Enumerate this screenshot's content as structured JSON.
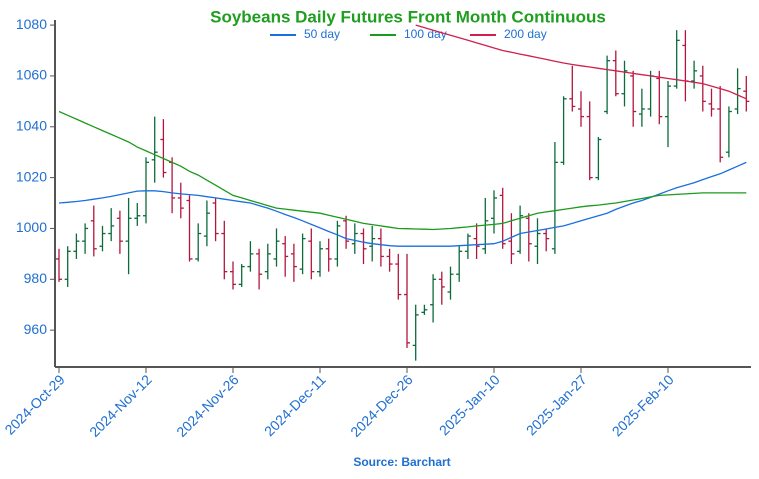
{
  "chart_data": {
    "type": "ohlc",
    "title": "Soybeans Daily Futures Front Month Continuous",
    "source": "Source: Barchart",
    "up_color": "#0b6b3a",
    "down_color": "#b3163c",
    "ylim": [
      945.5,
      1082
    ],
    "yticks": [
      960,
      980,
      1000,
      1020,
      1040,
      1060,
      1080
    ],
    "categories": [
      "2024-Oct-29",
      null,
      null,
      null,
      null,
      null,
      null,
      null,
      null,
      null,
      "2024-Nov-12",
      null,
      null,
      null,
      null,
      null,
      null,
      null,
      null,
      null,
      "2024-Nov-26",
      null,
      null,
      null,
      null,
      null,
      null,
      null,
      null,
      null,
      "2024-Dec-11",
      null,
      null,
      null,
      null,
      null,
      null,
      null,
      null,
      null,
      "2024-Dec-26",
      null,
      null,
      null,
      null,
      null,
      null,
      null,
      null,
      null,
      "2025-Jan-10",
      null,
      null,
      null,
      null,
      null,
      null,
      null,
      null,
      null,
      "2025-Jan-27",
      null,
      null,
      null,
      null,
      null,
      null,
      null,
      null,
      null,
      "2025-Feb-10",
      null,
      null,
      null,
      null,
      null,
      null,
      null,
      null,
      null
    ],
    "ohlc": [
      [
        988,
        992,
        979,
        980
      ],
      [
        980,
        993,
        977,
        991
      ],
      [
        991,
        998,
        988,
        995
      ],
      [
        995,
        1002,
        990,
        1000
      ],
      [
        1003,
        1009,
        989,
        992
      ],
      [
        993,
        1001,
        991,
        998
      ],
      [
        998,
        1008,
        995,
        1001
      ],
      [
        1004,
        1007,
        990,
        995
      ],
      [
        995,
        1012,
        982,
        1004
      ],
      [
        1004,
        1010,
        1001,
        1005
      ],
      [
        1005,
        1028,
        1002,
        1026
      ],
      [
        1027,
        1044,
        1018,
        1030
      ],
      [
        1035,
        1043,
        1020,
        1022
      ],
      [
        1026,
        1028,
        1006,
        1012
      ],
      [
        1012,
        1018,
        1004,
        1008
      ],
      [
        1011,
        1013,
        987,
        988
      ],
      [
        988,
        1002,
        987,
        998
      ],
      [
        997,
        1011,
        993,
        1006
      ],
      [
        1010,
        1012,
        995,
        998
      ],
      [
        998,
        1003,
        980,
        983
      ],
      [
        983,
        987,
        976,
        978
      ],
      [
        978,
        986,
        977,
        985
      ],
      [
        985,
        995,
        983,
        990
      ],
      [
        990,
        992,
        976,
        982
      ],
      [
        983,
        994,
        980,
        990
      ],
      [
        988,
        1000,
        985,
        995
      ],
      [
        994,
        997,
        981,
        989
      ],
      [
        990,
        994,
        979,
        985
      ],
      [
        984,
        998,
        982,
        996
      ],
      [
        995,
        1000,
        980,
        983
      ],
      [
        983,
        995,
        981,
        992
      ],
      [
        992,
        996,
        983,
        988
      ],
      [
        988,
        1003,
        985,
        1001
      ],
      [
        1003,
        1005,
        992,
        995
      ],
      [
        994,
        1002,
        990,
        998
      ],
      [
        998,
        1000,
        986,
        992
      ],
      [
        993,
        1001,
        987,
        996
      ],
      [
        996,
        1000,
        985,
        989
      ],
      [
        989,
        992,
        983,
        986
      ],
      [
        986,
        990,
        972,
        974
      ],
      [
        974,
        990,
        953,
        955
      ],
      [
        954,
        970,
        948,
        966
      ],
      [
        967,
        970,
        966,
        968
      ],
      [
        970,
        982,
        963,
        980
      ],
      [
        980,
        983,
        970,
        977
      ],
      [
        975,
        985,
        972,
        982
      ],
      [
        982,
        993,
        979,
        991
      ],
      [
        991,
        998,
        988,
        997
      ],
      [
        996,
        1002,
        988,
        993
      ],
      [
        992,
        1012,
        990,
        1003
      ],
      [
        1004,
        1015,
        998,
        1012
      ],
      [
        1013,
        1016,
        992,
        994
      ],
      [
        995,
        1006,
        986,
        990
      ],
      [
        991,
        1009,
        990,
        1005
      ],
      [
        1004,
        1006,
        987,
        994
      ],
      [
        993,
        1004,
        986,
        998
      ],
      [
        998,
        1000,
        991,
        996
      ],
      [
        992,
        1034,
        990,
        1026
      ],
      [
        1026,
        1052,
        1025,
        1051
      ],
      [
        1051,
        1064,
        1046,
        1048
      ],
      [
        1047,
        1054,
        1040,
        1044
      ],
      [
        1044,
        1050,
        1019,
        1020
      ],
      [
        1020,
        1036,
        1019,
        1035
      ],
      [
        1046,
        1068,
        1045,
        1066
      ],
      [
        1066,
        1070,
        1052,
        1053
      ],
      [
        1053,
        1066,
        1048,
        1062
      ],
      [
        1060,
        1062,
        1040,
        1046
      ],
      [
        1045,
        1055,
        1040,
        1047
      ],
      [
        1047,
        1062,
        1044,
        1060
      ],
      [
        1059,
        1062,
        1041,
        1044
      ],
      [
        1044,
        1058,
        1032,
        1056
      ],
      [
        1056,
        1078,
        1055,
        1074
      ],
      [
        1072,
        1078,
        1050,
        1058
      ],
      [
        1058,
        1066,
        1055,
        1062
      ],
      [
        1060,
        1064,
        1046,
        1050
      ],
      [
        1049,
        1055,
        1044,
        1047
      ],
      [
        1047,
        1056,
        1026,
        1028
      ],
      [
        1030,
        1048,
        1028,
        1046
      ],
      [
        1047,
        1063,
        1045,
        1055
      ],
      [
        1054,
        1060,
        1046,
        1050
      ]
    ],
    "series": [
      {
        "name": "50 day",
        "color": "#1a6fe0",
        "values": [
          1010,
          1010.3,
          1010.6,
          1011,
          1011.5,
          1012,
          1012.6,
          1013.3,
          1014,
          1014.7,
          1014.8,
          1014.8,
          1014.5,
          1014,
          1013.6,
          1013.3,
          1013,
          1012.5,
          1012,
          1011.5,
          1011,
          1010.5,
          1010,
          1009,
          1008,
          1006.8,
          1005.5,
          1004.3,
          1003,
          1001.6,
          1000.2,
          998.8,
          997.5,
          996,
          995.3,
          994.6,
          994,
          993.6,
          993.2,
          993,
          993,
          993,
          993,
          993,
          993,
          993,
          993.2,
          993.4,
          993.6,
          993.8,
          994,
          995,
          996.5,
          998,
          998.6,
          999.2,
          999.8,
          1000.4,
          1001,
          1002,
          1003,
          1004,
          1005,
          1006,
          1007.5,
          1008.8,
          1010,
          1011,
          1012.2,
          1013.5,
          1014.8,
          1016,
          1017,
          1018,
          1019.2,
          1020.4,
          1021.5,
          1023,
          1024.5,
          1026
        ]
      },
      {
        "name": "100 day",
        "color": "#1c9a1c",
        "values": [
          1046,
          1044.5,
          1043,
          1041.5,
          1040,
          1038.5,
          1037,
          1035.5,
          1034,
          1032,
          1030.5,
          1029,
          1027.5,
          1026,
          1024.5,
          1022.5,
          1021,
          1019,
          1017,
          1015,
          1013,
          1012,
          1011,
          1010,
          1009,
          1008,
          1007.6,
          1007.2,
          1006.8,
          1006.4,
          1006,
          1005.2,
          1004.4,
          1003.6,
          1002.8,
          1002,
          1001.5,
          1001,
          1000.5,
          1000,
          999.9,
          999.8,
          999.7,
          999.6,
          999.8,
          1000,
          1000.3,
          1000.6,
          1001,
          1001.3,
          1001.6,
          1002,
          1003,
          1004,
          1005,
          1006,
          1006.5,
          1007,
          1007.5,
          1008,
          1008.5,
          1008.9,
          1009.2,
          1009.6,
          1010,
          1010.6,
          1011.2,
          1011.8,
          1012.4,
          1013,
          1013.2,
          1013.4,
          1013.6,
          1013.8,
          1014,
          1014,
          1014,
          1014,
          1014,
          1014
        ]
      },
      {
        "name": "200 day",
        "color": "#d0204c",
        "values": [
          null,
          null,
          null,
          null,
          null,
          null,
          null,
          null,
          null,
          null,
          null,
          null,
          null,
          null,
          null,
          null,
          null,
          null,
          null,
          null,
          null,
          null,
          null,
          null,
          null,
          null,
          null,
          null,
          null,
          null,
          null,
          null,
          null,
          null,
          null,
          null,
          null,
          null,
          null,
          null,
          null,
          1080,
          1079,
          1078,
          1077,
          1076,
          1075,
          1074,
          1073,
          1072,
          1071,
          1070,
          1069.3,
          1068.6,
          1067.9,
          1067.2,
          1066.5,
          1065.8,
          1065.1,
          1064.5,
          1064,
          1063.5,
          1063,
          1062.5,
          1062,
          1061.5,
          1061,
          1060.5,
          1060,
          1059.5,
          1059,
          1058.5,
          1058,
          1057.5,
          1057,
          1056,
          1055,
          1054,
          1052.5,
          1051
        ]
      }
    ]
  }
}
